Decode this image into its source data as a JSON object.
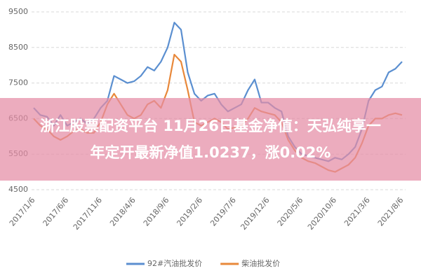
{
  "chart_data": {
    "type": "line",
    "categories": [
      "2017/1/6",
      null,
      null,
      null,
      null,
      "2017/6/6",
      null,
      null,
      null,
      null,
      "2017/11/6",
      null,
      null,
      null,
      null,
      "2018/4/6",
      null,
      null,
      null,
      null,
      "2018/9/6",
      null,
      null,
      null,
      null,
      "2019/2/6",
      null,
      null,
      null,
      null,
      "2019/7/6",
      null,
      null,
      null,
      null,
      "2019/12/6",
      null,
      null,
      null,
      null,
      "2020/5/6",
      null,
      null,
      null,
      null,
      "2020/10/6",
      null,
      null,
      null,
      null,
      "2021/3/6",
      null,
      null,
      null,
      null,
      "2021/8/6"
    ],
    "series": [
      {
        "name": "92#汽油批发价",
        "color": "#5b8fd0",
        "values": [
          6800,
          6600,
          6550,
          6300,
          6600,
          6300,
          6400,
          6500,
          6350,
          6500,
          6800,
          7000,
          7700,
          7600,
          7500,
          7550,
          7700,
          7950,
          7850,
          8100,
          8500,
          9200,
          9000,
          7800,
          7200,
          7000,
          7150,
          7200,
          6900,
          6700,
          6800,
          6900,
          7300,
          7600,
          6950,
          6950,
          6800,
          6700,
          6000,
          5700,
          5500,
          5450,
          5400,
          5350,
          5300,
          5400,
          5350,
          5500,
          5700,
          6200,
          7000,
          7300,
          7400,
          7800,
          7900,
          8100
        ]
      },
      {
        "name": "柴油批发价",
        "color": "#e8883a",
        "values": [
          6500,
          6300,
          6200,
          6000,
          5900,
          6000,
          6150,
          6200,
          6100,
          6100,
          6400,
          6900,
          7200,
          6900,
          6600,
          6500,
          6600,
          6900,
          7000,
          6800,
          7300,
          8300,
          8100,
          7300,
          6400,
          6300,
          6400,
          6500,
          6400,
          6200,
          6250,
          6300,
          6500,
          6800,
          6700,
          6650,
          6600,
          6400,
          5900,
          5600,
          5400,
          5300,
          5250,
          5150,
          5050,
          5000,
          5100,
          5200,
          5400,
          5800,
          6300,
          6500,
          6500,
          6600,
          6650,
          6600
        ]
      }
    ],
    "ylim": [
      4500,
      9500
    ],
    "yticks": [
      4500,
      5500,
      6500,
      7500,
      8500,
      9500
    ],
    "grid": true
  },
  "overlay": {
    "lines": [
      "浙江股票配资平台 11月26日基金净值：天弘纯享一",
      "年定开最新净值1.0237，涨0.02%"
    ]
  }
}
